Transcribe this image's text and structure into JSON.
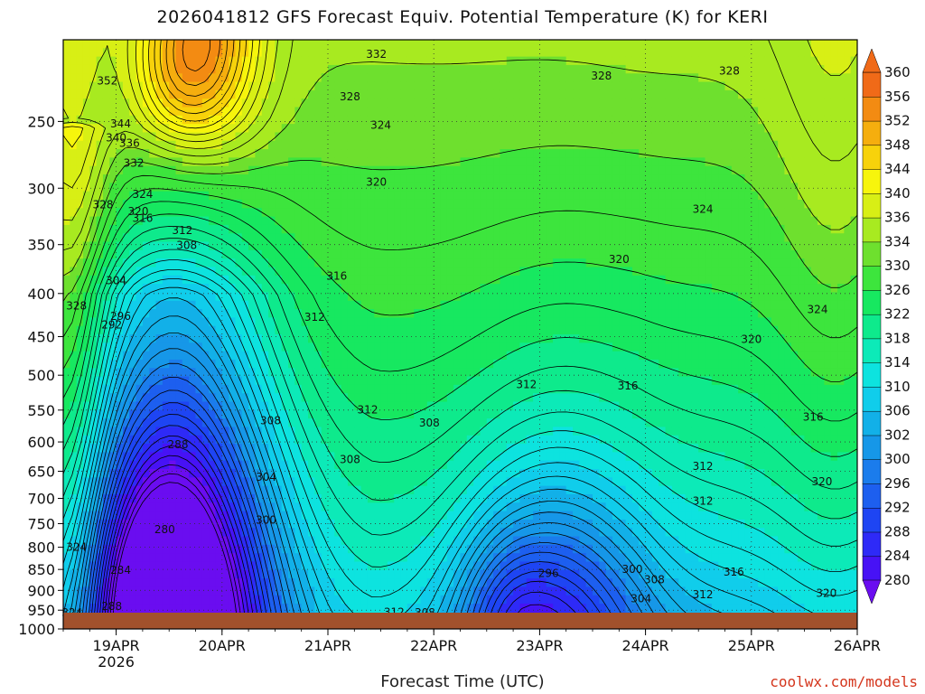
{
  "chart_data": {
    "type": "heatmap",
    "title": "2026041812 GFS Forecast Equiv. Potential Temperature (K) for KERI",
    "xlabel": "Forecast Time (UTC)",
    "ylabel": "",
    "credit": "coolwx.com/models",
    "x_ticks": [
      {
        "label": "19APR",
        "sub": "2026",
        "hours": 12
      },
      {
        "label": "20APR",
        "hours": 36
      },
      {
        "label": "21APR",
        "hours": 60
      },
      {
        "label": "22APR",
        "hours": 84
      },
      {
        "label": "23APR",
        "hours": 108
      },
      {
        "label": "24APR",
        "hours": 132
      },
      {
        "label": "25APR",
        "hours": 156
      },
      {
        "label": "26APR",
        "hours": 180
      }
    ],
    "x_range_hours": [
      0,
      180
    ],
    "y_ticks": [
      250,
      300,
      350,
      400,
      450,
      500,
      550,
      600,
      650,
      700,
      750,
      800,
      850,
      900,
      950,
      1000
    ],
    "y_range_hpa": [
      200,
      1000
    ],
    "y_scale": "log-pressure",
    "grid": true,
    "colorbar": {
      "levels": [
        280,
        284,
        288,
        292,
        296,
        300,
        302,
        306,
        310,
        314,
        318,
        322,
        326,
        330,
        334,
        336,
        340,
        344,
        348,
        352,
        356,
        360
      ],
      "colors": [
        "#6a0df0",
        "#4712f5",
        "#2e2af7",
        "#1e45f3",
        "#1d5fef",
        "#1b7cec",
        "#1697e8",
        "#12b0e8",
        "#10cdeb",
        "#0de3df",
        "#0ceab8",
        "#0eea8c",
        "#17e860",
        "#3de53d",
        "#6ee02e",
        "#a8ea20",
        "#d8ef15",
        "#f7f50c",
        "#f7d20b",
        "#f5ae0e",
        "#f38b12",
        "#f06a18"
      ]
    },
    "contour_labels": [
      {
        "t": 10,
        "p": 226,
        "v": "352"
      },
      {
        "t": 13,
        "p": 254,
        "v": "344"
      },
      {
        "t": 12,
        "p": 264,
        "v": "340"
      },
      {
        "t": 15,
        "p": 268,
        "v": "336"
      },
      {
        "t": 16,
        "p": 283,
        "v": "332"
      },
      {
        "t": 18,
        "p": 308,
        "v": "324"
      },
      {
        "t": 17,
        "p": 323,
        "v": "320"
      },
      {
        "t": 18,
        "p": 329,
        "v": "316"
      },
      {
        "t": 9,
        "p": 317,
        "v": "328"
      },
      {
        "t": 27,
        "p": 340,
        "v": "312"
      },
      {
        "t": 28,
        "p": 354,
        "v": "308"
      },
      {
        "t": 12,
        "p": 390,
        "v": "304"
      },
      {
        "t": 13,
        "p": 430,
        "v": "296"
      },
      {
        "t": 11,
        "p": 440,
        "v": "292"
      },
      {
        "t": 26,
        "p": 610,
        "v": "288"
      },
      {
        "t": 23,
        "p": 770,
        "v": "280"
      },
      {
        "t": 13,
        "p": 860,
        "v": "284"
      },
      {
        "t": 11,
        "p": 950,
        "v": "288"
      },
      {
        "t": 3,
        "p": 808,
        "v": "324"
      },
      {
        "t": 2,
        "p": 966,
        "v": "324"
      },
      {
        "t": 3,
        "p": 418,
        "v": "328"
      },
      {
        "t": 47,
        "p": 572,
        "v": "308"
      },
      {
        "t": 46,
        "p": 667,
        "v": "304"
      },
      {
        "t": 46,
        "p": 750,
        "v": "300"
      },
      {
        "t": 65,
        "p": 636,
        "v": "308"
      },
      {
        "t": 69,
        "p": 555,
        "v": "312"
      },
      {
        "t": 71,
        "p": 210,
        "v": "332"
      },
      {
        "t": 65,
        "p": 236,
        "v": "328"
      },
      {
        "t": 72,
        "p": 255,
        "v": "324"
      },
      {
        "t": 71,
        "p": 298,
        "v": "320"
      },
      {
        "t": 62,
        "p": 385,
        "v": "316"
      },
      {
        "t": 57,
        "p": 431,
        "v": "312"
      },
      {
        "t": 83,
        "p": 575,
        "v": "308"
      },
      {
        "t": 75,
        "p": 965,
        "v": "312"
      },
      {
        "t": 82,
        "p": 966,
        "v": "308"
      },
      {
        "t": 105,
        "p": 518,
        "v": "312"
      },
      {
        "t": 128,
        "p": 520,
        "v": "316"
      },
      {
        "t": 122,
        "p": 223,
        "v": "328"
      },
      {
        "t": 151,
        "p": 220,
        "v": "328"
      },
      {
        "t": 145,
        "p": 321,
        "v": "324"
      },
      {
        "t": 126,
        "p": 368,
        "v": "320"
      },
      {
        "t": 156,
        "p": 458,
        "v": "320"
      },
      {
        "t": 171,
        "p": 422,
        "v": "324"
      },
      {
        "t": 170,
        "p": 566,
        "v": "316"
      },
      {
        "t": 145,
        "p": 648,
        "v": "312"
      },
      {
        "t": 145,
        "p": 712,
        "v": "312"
      },
      {
        "t": 172,
        "p": 675,
        "v": "320"
      },
      {
        "t": 110,
        "p": 868,
        "v": "296"
      },
      {
        "t": 129,
        "p": 858,
        "v": "300"
      },
      {
        "t": 134,
        "p": 883,
        "v": "308"
      },
      {
        "t": 131,
        "p": 930,
        "v": "304"
      },
      {
        "t": 145,
        "p": 920,
        "v": "312"
      },
      {
        "t": 152,
        "p": 865,
        "v": "316"
      },
      {
        "t": 173,
        "p": 916,
        "v": "320"
      }
    ]
  }
}
